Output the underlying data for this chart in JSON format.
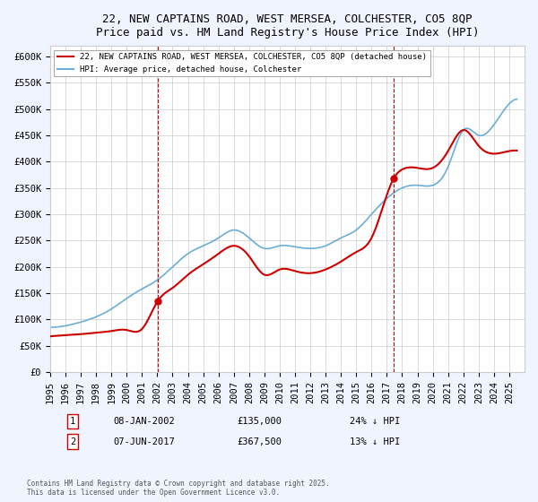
{
  "title1": "22, NEW CAPTAINS ROAD, WEST MERSEA, COLCHESTER, CO5 8QP",
  "title2": "Price paid vs. HM Land Registry's House Price Index (HPI)",
  "xlabel": "",
  "ylabel": "",
  "ylim": [
    0,
    620000
  ],
  "xlim_start": 1995.0,
  "xlim_end": 2026.0,
  "yticks": [
    0,
    50000,
    100000,
    150000,
    200000,
    250000,
    300000,
    350000,
    400000,
    450000,
    500000,
    550000,
    600000
  ],
  "ytick_labels": [
    "£0",
    "£50K",
    "£100K",
    "£150K",
    "£200K",
    "£250K",
    "£300K",
    "£350K",
    "£400K",
    "£450K",
    "£500K",
    "£550K",
    "£600K"
  ],
  "xticks": [
    1995,
    1996,
    1997,
    1998,
    1999,
    2000,
    2001,
    2002,
    2003,
    2004,
    2005,
    2006,
    2007,
    2008,
    2009,
    2010,
    2011,
    2012,
    2013,
    2014,
    2015,
    2016,
    2017,
    2018,
    2019,
    2020,
    2021,
    2022,
    2023,
    2024,
    2025
  ],
  "sale1_x": 2002.03,
  "sale1_y": 135000,
  "sale1_label": "1",
  "sale2_x": 2017.44,
  "sale2_y": 367500,
  "sale2_label": "2",
  "hpi_color": "#6baed6",
  "sold_color": "#cc0000",
  "legend_line1": "22, NEW CAPTAINS ROAD, WEST MERSEA, COLCHESTER, CO5 8QP (detached house)",
  "legend_line2": "HPI: Average price, detached house, Colchester",
  "annotation1_date": "08-JAN-2002",
  "annotation1_price": "£135,000",
  "annotation1_hpi": "24% ↓ HPI",
  "annotation2_date": "07-JUN-2017",
  "annotation2_price": "£367,500",
  "annotation2_hpi": "13% ↓ HPI",
  "footnote": "Contains HM Land Registry data © Crown copyright and database right 2025.\nThis data is licensed under the Open Government Licence v3.0.",
  "bg_color": "#f0f4ff",
  "plot_bg_color": "#ffffff",
  "title_fontsize": 9,
  "tick_fontsize": 7.5
}
